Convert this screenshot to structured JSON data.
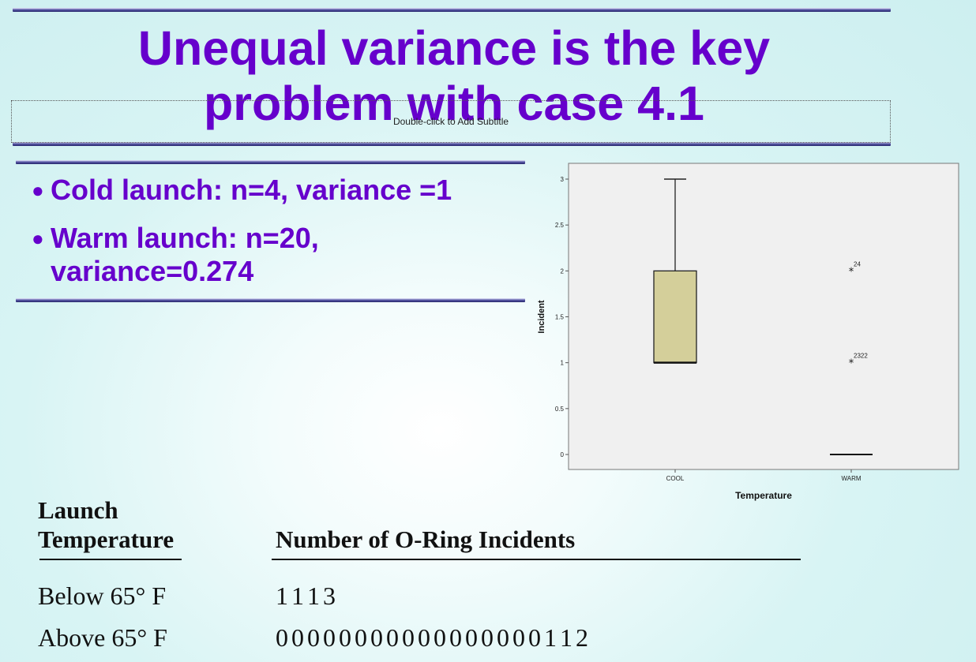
{
  "slide": {
    "title": "Unequal variance is the key problem with case 4.1",
    "subtitle_placeholder": "Double-click to Add Subtitle",
    "bullets": [
      {
        "text": "Cold launch: n=4, variance =1"
      },
      {
        "text": "Warm launch: n=20, variance=0.274"
      }
    ],
    "bullet_glyph": "●"
  },
  "chart_data": {
    "type": "box",
    "xlabel": "Temperature",
    "ylabel": "Incident",
    "categories": [
      "COOL",
      "WARM"
    ],
    "ylim": [
      0,
      3
    ],
    "yticks": [
      0,
      0.5,
      1,
      1.5,
      2,
      2.5,
      3
    ],
    "ytick_labels": [
      "0",
      "0.5",
      "1",
      "1.5",
      "2",
      "2.5",
      "3"
    ],
    "boxes": [
      {
        "category": "COOL",
        "min": 1,
        "q1": 1,
        "median": 1,
        "q3": 2,
        "max": 3
      },
      {
        "category": "WARM",
        "min": 0,
        "q1": 0,
        "median": 0,
        "q3": 0,
        "max": 0
      }
    ],
    "outliers": [
      {
        "category": "WARM",
        "value": 2,
        "label": "24"
      },
      {
        "category": "WARM",
        "value": 1,
        "label": "2322"
      }
    ],
    "box_fill": "#d4cf9a",
    "plot_background": "#f0f0f0",
    "grid": false
  },
  "table": {
    "col1_header": [
      "Launch",
      "Temperature"
    ],
    "col2_header": "Number of O-Ring Incidents",
    "rows": [
      {
        "label": "Below 65° F",
        "values": "1  1  1  3"
      },
      {
        "label": "Above 65° F",
        "values": "0  0  0  0  0  0  0  0  0  0  0  0  0  0  0  0  0  1  1  2"
      }
    ]
  },
  "colors": {
    "accent": "#6600cc",
    "rule": "#2a2a78"
  }
}
